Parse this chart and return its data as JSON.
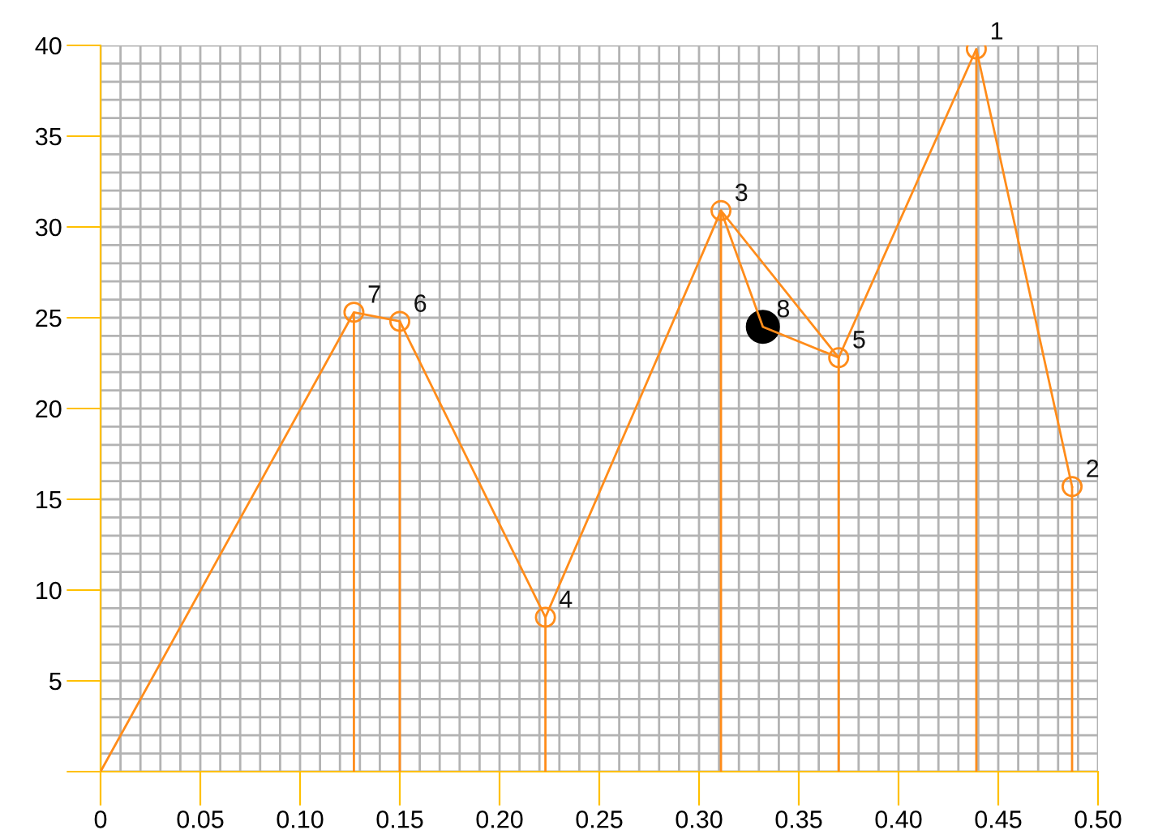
{
  "chart_data": {
    "type": "line",
    "xlim": [
      0,
      0.5
    ],
    "ylim": [
      0,
      40
    ],
    "xticks": [
      {
        "value": 0,
        "label": "0"
      },
      0.05,
      {
        "value": 0.1,
        "label": "0.10"
      },
      0.15,
      {
        "value": 0.2,
        "label": "0.20"
      },
      0.25,
      {
        "value": 0.3,
        "label": "0.30"
      },
      0.35,
      {
        "value": 0.4,
        "label": "0.40"
      },
      0.45,
      {
        "value": 0.5,
        "label": "0.50"
      }
    ],
    "yticks": [
      {
        "value": 0,
        "label": null
      },
      5,
      10,
      15,
      20,
      25,
      30,
      35,
      40
    ],
    "grid": true,
    "legend": false,
    "series": [
      {
        "color": "#ff8c1a",
        "marker": "none",
        "x": [
          0,
          0.127,
          0.15,
          0.223,
          0.311,
          0.332,
          0.37,
          0.439,
          0.487
        ],
        "values": [
          0,
          25.3,
          24.8,
          8.5,
          30.9,
          24.5,
          22.8,
          39.8,
          15.7
        ]
      },
      {
        "color": "#ff8c1a",
        "marker": "none",
        "x": [
          0.311,
          0.37
        ],
        "values": [
          30.9,
          22.8
        ]
      },
      {
        "type": "lollipop",
        "color": "#ff8c1a",
        "marker": "circle",
        "x": [
          0.127,
          0.15,
          0.223,
          0.311,
          0.37,
          0.439,
          0.487
        ],
        "values": [
          25.3,
          24.8,
          8.5,
          30.9,
          22.8,
          39.8,
          15.7
        ]
      },
      {
        "type": "scatter",
        "color": "#000000",
        "marker": "circle",
        "x": [
          0.332
        ],
        "values": [
          24.5
        ]
      }
    ],
    "annotations": [
      {
        "text": "1",
        "x": 0.439,
        "y": 39.8
      },
      {
        "text": "2",
        "x": 0.487,
        "y": 15.7
      },
      {
        "text": "3",
        "x": 0.311,
        "y": 30.9
      },
      {
        "text": "4",
        "x": 0.223,
        "y": 8.5
      },
      {
        "text": "5",
        "x": 0.37,
        "y": 22.8
      },
      {
        "text": "6",
        "x": 0.15,
        "y": 24.8
      },
      {
        "text": "7",
        "x": 0.127,
        "y": 25.3
      },
      {
        "text": "8",
        "x": 0.332,
        "y": 24.5
      }
    ]
  }
}
